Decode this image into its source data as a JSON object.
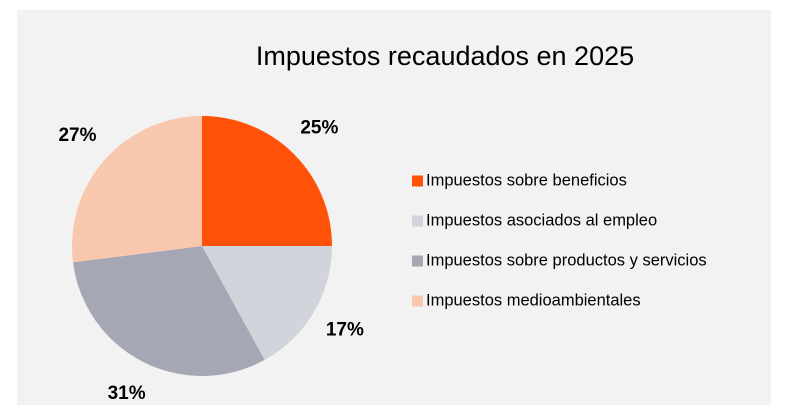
{
  "chart_data": {
    "type": "pie",
    "title": "Impuestos recaudados en 2025",
    "categories": [
      "Impuestos sobre beneficios",
      "Impuestos asociados al empleo",
      "Impuestos sobre productos y servicios",
      "Impuestos medioambientales"
    ],
    "values": [
      25,
      17,
      31,
      27
    ],
    "value_labels": [
      "25%",
      "17%",
      "31%",
      "27%"
    ],
    "colors": [
      "#ff5208",
      "#d1d4db",
      "#a5a8b4",
      "#f8c8ae"
    ]
  }
}
